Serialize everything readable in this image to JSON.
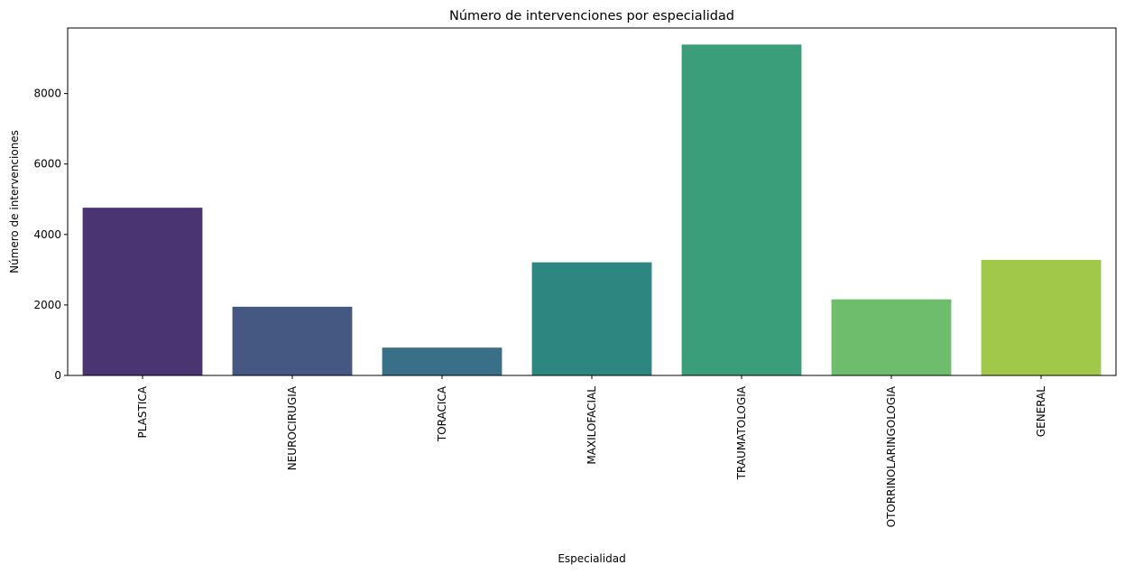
{
  "chart_data": {
    "type": "bar",
    "title": "Número de intervenciones por especialidad",
    "xlabel": "Especialidad",
    "ylabel": "Número de intervenciones",
    "categories": [
      "PLASTICA",
      "NEUROCIRUGIA",
      "TORACICA",
      "MAXILOFACIAL",
      "TRAUMATOLOGIA",
      "OTORRINOLARINGOLOGIA",
      "GENERAL"
    ],
    "values": [
      4760,
      1950,
      790,
      3210,
      9390,
      2160,
      3280
    ],
    "colors": [
      "#4a3572",
      "#445882",
      "#3a7087",
      "#2e8680",
      "#3a9e7b",
      "#6dbd6c",
      "#a2c84a"
    ],
    "ylim": [
      0,
      9860
    ],
    "yticks": [
      0,
      2000,
      4000,
      6000,
      8000
    ],
    "grid": false,
    "legend": "none"
  }
}
